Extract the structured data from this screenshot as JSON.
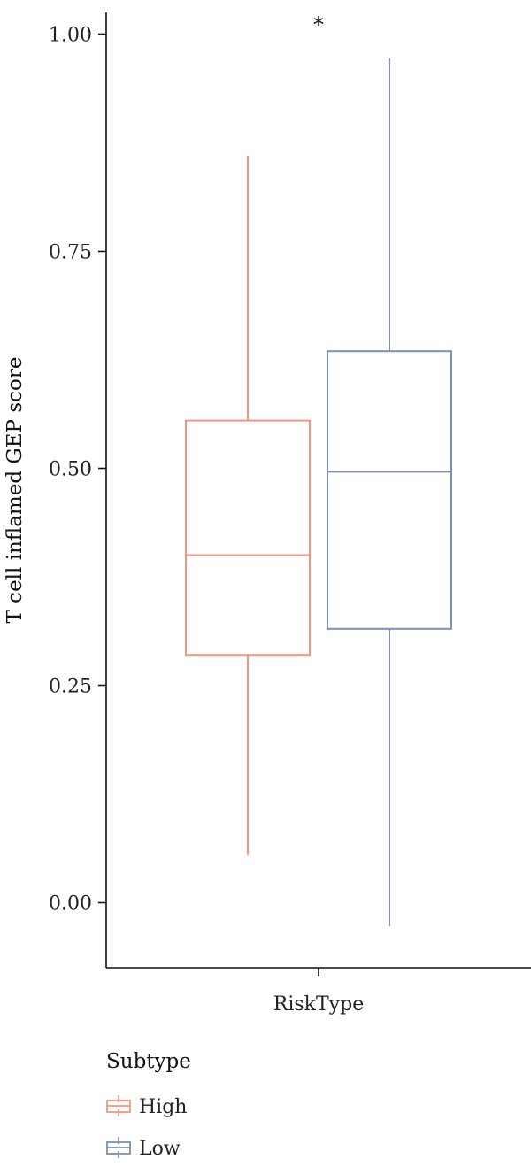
{
  "chart_data": {
    "type": "box",
    "title": "",
    "xlabel": "",
    "ylabel": "T cell inflamed GEP score",
    "categories": [
      "RiskType"
    ],
    "ylim": [
      -0.075,
      1.025
    ],
    "yticks": [
      "0.00",
      "0.25",
      "0.50",
      "0.75",
      "1.00"
    ],
    "significance": "*",
    "grid": false,
    "legend": {
      "title": "Subtype",
      "position": "bottom-left"
    },
    "series": [
      {
        "name": "High",
        "color": "#F4957E",
        "min": 0.055,
        "q1": 0.285,
        "median": 0.4,
        "q3": 0.555,
        "max": 0.86
      },
      {
        "name": "Low",
        "color": "#7E8FB4",
        "min": -0.027,
        "q1": 0.315,
        "median": 0.496,
        "q3": 0.635,
        "max": 0.972
      }
    ]
  }
}
